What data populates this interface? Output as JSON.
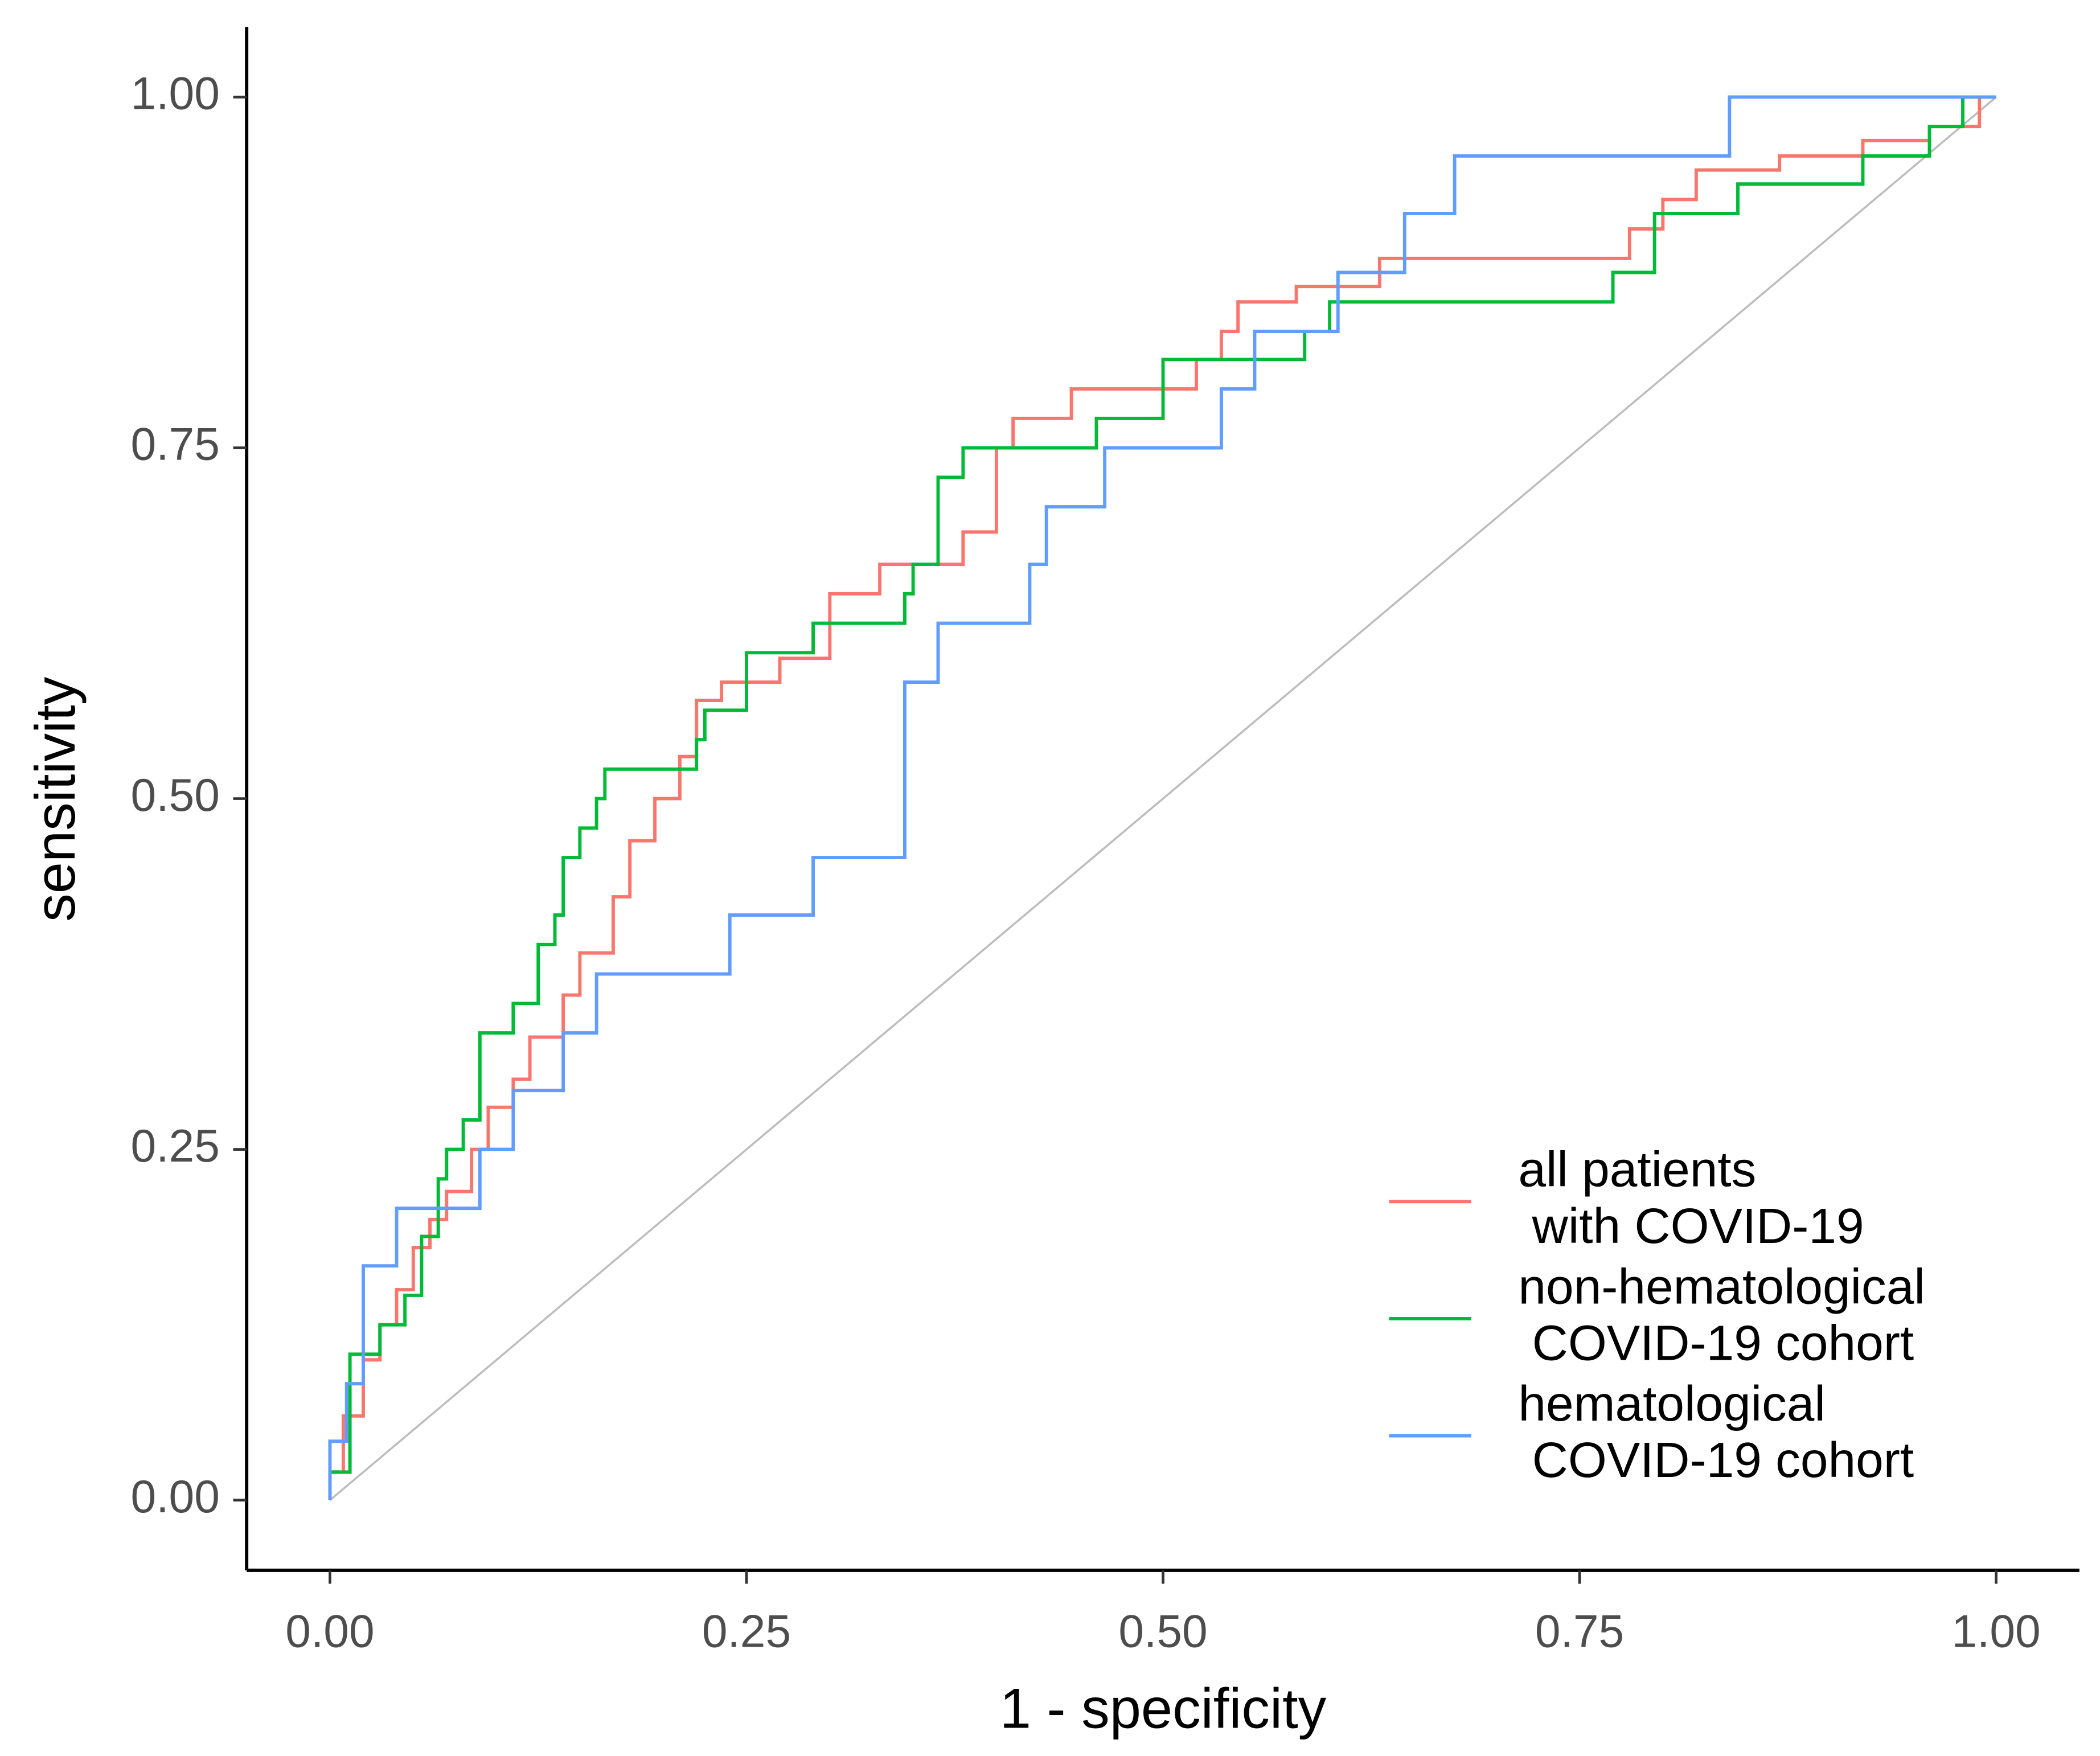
{
  "chart_data": {
    "type": "line",
    "xlabel": "1 - specificity",
    "ylabel": "sensitivity",
    "xlim": [
      -0.05,
      1.05
    ],
    "ylim": [
      -0.05,
      1.05
    ],
    "xticks": [
      {
        "value": 0,
        "label": "0.00"
      },
      {
        "value": 0.25,
        "label": "0.25"
      },
      {
        "value": 0.5,
        "label": "0.50"
      },
      {
        "value": 0.75,
        "label": "0.75"
      },
      {
        "value": 1,
        "label": "1.00"
      }
    ],
    "yticks": [
      {
        "value": 0,
        "label": "0.00"
      },
      {
        "value": 0.25,
        "label": "0.25"
      },
      {
        "value": 0.5,
        "label": "0.50"
      },
      {
        "value": 0.75,
        "label": "0.75"
      },
      {
        "value": 1,
        "label": "1.00"
      }
    ],
    "grid": false,
    "legend": "bottom-right",
    "reference": {
      "color": "#bdbdbd",
      "x": [
        0,
        1
      ],
      "values": [
        0,
        1
      ]
    },
    "series": [
      {
        "name": "all patients\n with COVID-19",
        "color": "#f8766d",
        "x": [
          0,
          0,
          0.008,
          0.008,
          0.02,
          0.02,
          0.03,
          0.03,
          0.04,
          0.04,
          0.05,
          0.05,
          0.06,
          0.06,
          0.07,
          0.07,
          0.085,
          0.085,
          0.095,
          0.095,
          0.11,
          0.11,
          0.12,
          0.12,
          0.14,
          0.14,
          0.15,
          0.15,
          0.17,
          0.17,
          0.18,
          0.18,
          0.195,
          0.195,
          0.21,
          0.21,
          0.22,
          0.22,
          0.235,
          0.235,
          0.27,
          0.27,
          0.3,
          0.3,
          0.33,
          0.33,
          0.38,
          0.38,
          0.4,
          0.4,
          0.41,
          0.41,
          0.445,
          0.445,
          0.52,
          0.52,
          0.535,
          0.535,
          0.545,
          0.545,
          0.58,
          0.58,
          0.63,
          0.63,
          0.78,
          0.78,
          0.8,
          0.8,
          0.82,
          0.82,
          0.87,
          0.87,
          0.92,
          0.92,
          0.96,
          0.96,
          0.99,
          0.99,
          1
        ],
        "values": [
          0,
          0.02,
          0.02,
          0.06,
          0.06,
          0.1,
          0.1,
          0.125,
          0.125,
          0.15,
          0.15,
          0.18,
          0.18,
          0.2,
          0.2,
          0.22,
          0.22,
          0.25,
          0.25,
          0.28,
          0.28,
          0.3,
          0.3,
          0.33,
          0.33,
          0.36,
          0.36,
          0.39,
          0.39,
          0.43,
          0.43,
          0.47,
          0.47,
          0.5,
          0.5,
          0.53,
          0.53,
          0.57,
          0.57,
          0.583,
          0.583,
          0.6,
          0.6,
          0.646,
          0.646,
          0.667,
          0.667,
          0.69,
          0.69,
          0.75,
          0.75,
          0.771,
          0.771,
          0.792,
          0.792,
          0.813,
          0.813,
          0.833,
          0.833,
          0.854,
          0.854,
          0.865,
          0.865,
          0.885,
          0.885,
          0.906,
          0.906,
          0.927,
          0.927,
          0.948,
          0.948,
          0.958,
          0.958,
          0.969,
          0.969,
          0.979,
          0.979,
          1,
          1
        ]
      },
      {
        "name": "non-hematological\n COVID-19 cohort",
        "color": "#00ba38",
        "x": [
          0,
          0.012,
          0.012,
          0.03,
          0.03,
          0.045,
          0.045,
          0.055,
          0.055,
          0.065,
          0.065,
          0.07,
          0.07,
          0.08,
          0.08,
          0.09,
          0.09,
          0.11,
          0.11,
          0.125,
          0.125,
          0.135,
          0.135,
          0.14,
          0.14,
          0.15,
          0.15,
          0.16,
          0.16,
          0.165,
          0.165,
          0.22,
          0.22,
          0.225,
          0.225,
          0.25,
          0.25,
          0.29,
          0.29,
          0.345,
          0.345,
          0.35,
          0.35,
          0.365,
          0.365,
          0.38,
          0.38,
          0.46,
          0.46,
          0.5,
          0.5,
          0.585,
          0.585,
          0.6,
          0.6,
          0.77,
          0.77,
          0.795,
          0.795,
          0.845,
          0.845,
          0.92,
          0.92,
          0.96,
          0.96,
          0.98,
          0.98,
          1
        ],
        "values": [
          0.02,
          0.02,
          0.104,
          0.104,
          0.125,
          0.125,
          0.146,
          0.146,
          0.188,
          0.188,
          0.229,
          0.229,
          0.25,
          0.25,
          0.271,
          0.271,
          0.333,
          0.333,
          0.354,
          0.354,
          0.396,
          0.396,
          0.417,
          0.417,
          0.458,
          0.458,
          0.479,
          0.479,
          0.5,
          0.5,
          0.521,
          0.521,
          0.542,
          0.542,
          0.563,
          0.563,
          0.604,
          0.604,
          0.625,
          0.625,
          0.646,
          0.646,
          0.667,
          0.667,
          0.729,
          0.729,
          0.75,
          0.75,
          0.771,
          0.771,
          0.813,
          0.813,
          0.833,
          0.833,
          0.854,
          0.854,
          0.875,
          0.875,
          0.917,
          0.917,
          0.938,
          0.938,
          0.958,
          0.958,
          0.979,
          0.979,
          1,
          1
        ]
      },
      {
        "name": "hematological\n COVID-19 cohort",
        "color": "#619cff",
        "x": [
          0,
          0,
          0.01,
          0.01,
          0.02,
          0.02,
          0.04,
          0.04,
          0.09,
          0.09,
          0.11,
          0.11,
          0.14,
          0.14,
          0.16,
          0.16,
          0.24,
          0.24,
          0.29,
          0.29,
          0.345,
          0.345,
          0.365,
          0.365,
          0.42,
          0.42,
          0.43,
          0.43,
          0.465,
          0.465,
          0.535,
          0.535,
          0.555,
          0.555,
          0.605,
          0.605,
          0.645,
          0.645,
          0.675,
          0.675,
          0.84,
          0.84,
          1
        ],
        "values": [
          0,
          0.042,
          0.042,
          0.083,
          0.083,
          0.167,
          0.167,
          0.208,
          0.208,
          0.25,
          0.25,
          0.292,
          0.292,
          0.333,
          0.333,
          0.375,
          0.375,
          0.417,
          0.417,
          0.458,
          0.458,
          0.583,
          0.583,
          0.625,
          0.625,
          0.667,
          0.667,
          0.708,
          0.708,
          0.75,
          0.75,
          0.792,
          0.792,
          0.833,
          0.833,
          0.875,
          0.875,
          0.917,
          0.917,
          0.958,
          0.958,
          1,
          1
        ]
      }
    ]
  }
}
